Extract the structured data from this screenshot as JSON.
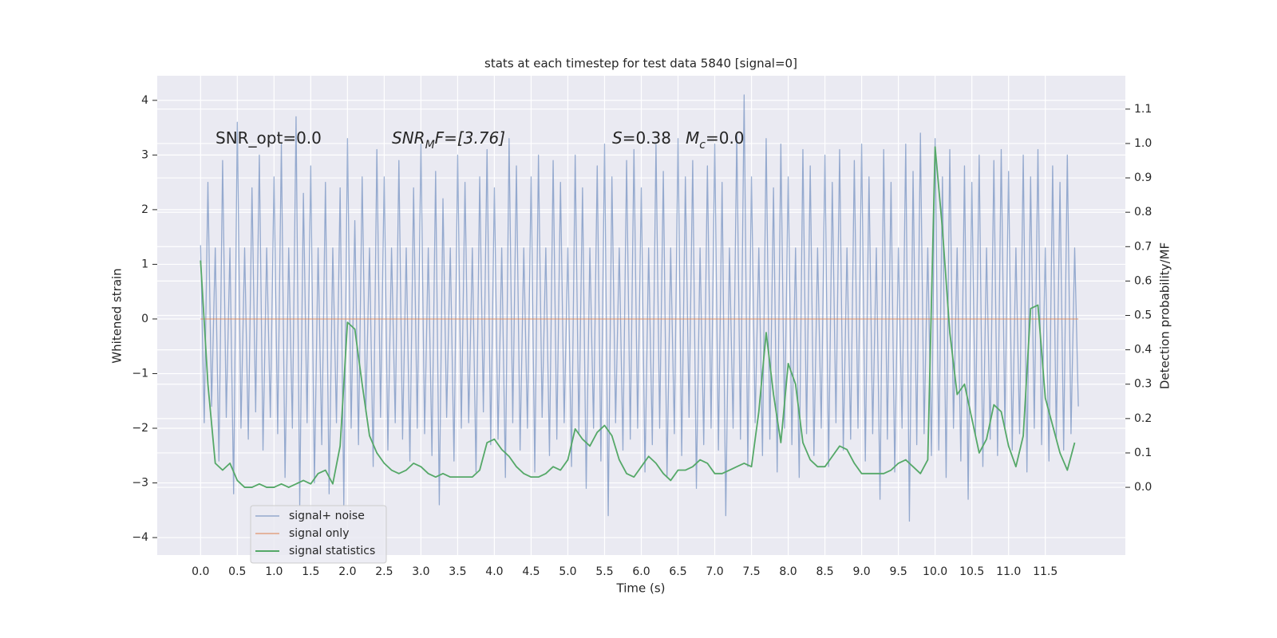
{
  "chart_data": {
    "type": "line",
    "title": "stats at each timestep for test data 5840 [signal=0]",
    "x_label": "Time (s)",
    "y_label": "Whitened strain",
    "y2_label": "Detection probability/MF",
    "annotations": [
      {
        "parts": [
          "SNR_opt=0.0"
        ]
      },
      {
        "parts": [
          "SNR",
          "M",
          "F=[3.76]"
        ]
      },
      {
        "parts": [
          "S",
          "=0.38"
        ]
      },
      {
        "parts": [
          "M",
          "c",
          "=0.0"
        ]
      }
    ],
    "xlim": [
      -0.59,
      12.59
    ],
    "ylim": [
      -4.32,
      4.45
    ],
    "y2lim": [
      -0.197,
      1.197
    ],
    "xticks": [
      {
        "value": 0,
        "label": "0.0"
      },
      0.5,
      {
        "value": 1,
        "label": "1.0"
      },
      1.5,
      {
        "value": 2,
        "label": "2.0"
      },
      2.5,
      {
        "value": 3,
        "label": "3.0"
      },
      3.5,
      {
        "value": 4,
        "label": "4.0"
      },
      4.5,
      {
        "value": 5,
        "label": "5.0"
      },
      5.5,
      {
        "value": 6,
        "label": "6.0"
      },
      6.5,
      {
        "value": 7,
        "label": "7.0"
      },
      7.5,
      {
        "value": 8,
        "label": "8.0"
      },
      8.5,
      {
        "value": 9,
        "label": "9.0"
      },
      9.5,
      {
        "value": 10,
        "label": "10.0"
      },
      10.5,
      {
        "value": 11,
        "label": "11.0"
      },
      11.5
    ],
    "yticks": [
      {
        "value": -4,
        "label": "−4"
      },
      {
        "value": -3,
        "label": "−3"
      },
      {
        "value": -2,
        "label": "−2"
      },
      {
        "value": -1,
        "label": "−1"
      },
      0,
      1,
      2,
      3,
      4
    ],
    "y2ticks": [
      {
        "value": 0,
        "label": "0.0"
      },
      0.1,
      0.2,
      0.3,
      0.4,
      0.5,
      0.6,
      0.7,
      0.8,
      0.9,
      {
        "value": 1,
        "label": "1.0"
      },
      1.1
    ],
    "grid": true,
    "legend": "lower left",
    "series": [
      {
        "name": "signal+ noise",
        "color": "#4c72b0",
        "x": [
          0,
          0.05,
          0.1,
          0.15,
          0.2,
          0.25,
          0.3,
          0.35,
          0.4,
          0.45,
          0.5,
          0.55,
          0.6,
          0.65,
          0.7,
          0.75,
          0.8,
          0.85,
          0.9,
          0.95,
          1,
          1.05,
          1.1,
          1.15,
          1.2,
          1.25,
          1.3,
          1.35,
          1.4,
          1.45,
          1.5,
          1.55,
          1.6,
          1.65,
          1.7,
          1.75,
          1.8,
          1.85,
          1.9,
          1.95,
          2,
          2.05,
          2.1,
          2.15,
          2.2,
          2.25,
          2.3,
          2.35,
          2.4,
          2.45,
          2.5,
          2.55,
          2.6,
          2.65,
          2.7,
          2.75,
          2.8,
          2.85,
          2.9,
          2.95,
          3,
          3.05,
          3.1,
          3.15,
          3.2,
          3.25,
          3.3,
          3.35,
          3.4,
          3.45,
          3.5,
          3.55,
          3.6,
          3.65,
          3.7,
          3.75,
          3.8,
          3.85,
          3.9,
          3.95,
          4,
          4.05,
          4.1,
          4.15,
          4.2,
          4.25,
          4.3,
          4.35,
          4.4,
          4.45,
          4.5,
          4.55,
          4.6,
          4.65,
          4.7,
          4.75,
          4.8,
          4.85,
          4.9,
          4.95,
          5,
          5.05,
          5.1,
          5.15,
          5.2,
          5.25,
          5.3,
          5.35,
          5.4,
          5.45,
          5.5,
          5.55,
          5.6,
          5.65,
          5.7,
          5.75,
          5.8,
          5.85,
          5.9,
          5.95,
          6,
          6.05,
          6.1,
          6.15,
          6.2,
          6.25,
          6.3,
          6.35,
          6.4,
          6.45,
          6.5,
          6.55,
          6.6,
          6.65,
          6.7,
          6.75,
          6.8,
          6.85,
          6.9,
          6.95,
          7,
          7.05,
          7.1,
          7.15,
          7.2,
          7.25,
          7.3,
          7.35,
          7.4,
          7.45,
          7.5,
          7.55,
          7.6,
          7.65,
          7.7,
          7.75,
          7.8,
          7.85,
          7.9,
          7.95,
          8,
          8.05,
          8.1,
          8.15,
          8.2,
          8.25,
          8.3,
          8.35,
          8.4,
          8.45,
          8.5,
          8.55,
          8.6,
          8.65,
          8.7,
          8.75,
          8.8,
          8.85,
          8.9,
          8.95,
          9,
          9.05,
          9.1,
          9.15,
          9.2,
          9.25,
          9.3,
          9.35,
          9.4,
          9.45,
          9.5,
          9.55,
          9.6,
          9.65,
          9.7,
          9.75,
          9.8,
          9.85,
          9.9,
          9.95,
          10,
          10.05,
          10.1,
          10.15,
          10.2,
          10.25,
          10.3,
          10.35,
          10.4,
          10.45,
          10.5,
          10.55,
          10.6,
          10.65,
          10.7,
          10.75,
          10.8,
          10.85,
          10.9,
          10.95,
          11,
          11.05,
          11.1,
          11.15,
          11.2,
          11.25,
          11.3,
          11.35,
          11.4,
          11.45,
          11.5,
          11.55,
          11.6,
          11.65,
          11.7,
          11.75,
          11.8,
          11.85,
          11.9,
          11.95
        ],
        "values": [
          1.35,
          -1.9,
          2.5,
          -1.6,
          1.3,
          -2.6,
          2.9,
          -1.8,
          1.3,
          -3.2,
          3.6,
          -2.0,
          1.3,
          -2.2,
          2.4,
          -1.7,
          3.0,
          -2.4,
          1.3,
          -1.8,
          2.6,
          -2.1,
          3.2,
          -2.9,
          1.3,
          -2.0,
          3.7,
          -3.4,
          2.3,
          -1.9,
          2.8,
          -3.0,
          1.3,
          -2.3,
          2.5,
          -3.2,
          1.3,
          -1.9,
          2.4,
          -3.4,
          3.3,
          -2.0,
          1.8,
          -2.3,
          2.6,
          -1.7,
          1.3,
          -2.7,
          3.1,
          -1.8,
          2.6,
          -2.4,
          1.3,
          -1.9,
          2.9,
          -2.2,
          1.3,
          -2.6,
          2.4,
          -2.0,
          3.2,
          -2.1,
          1.3,
          -2.5,
          2.7,
          -3.4,
          2.2,
          -1.8,
          1.3,
          -2.6,
          3.0,
          -2.0,
          2.5,
          -1.9,
          1.3,
          -2.8,
          2.6,
          -1.7,
          3.1,
          -2.3,
          2.4,
          -2.2,
          1.3,
          -2.9,
          3.3,
          -1.9,
          2.8,
          -2.4,
          1.3,
          -2.0,
          2.6,
          -2.8,
          3.0,
          -1.8,
          1.3,
          -2.5,
          2.9,
          -2.2,
          2.5,
          -1.9,
          1.3,
          -2.7,
          3.0,
          -2.1,
          2.4,
          -3.1,
          1.3,
          -2.0,
          2.8,
          -2.6,
          3.2,
          -3.6,
          2.6,
          -1.9,
          1.3,
          -2.4,
          2.9,
          -2.2,
          3.1,
          -2.0,
          2.4,
          -2.8,
          1.3,
          -2.3,
          3.2,
          -2.0,
          2.7,
          -2.9,
          1.3,
          -2.1,
          3.3,
          -2.5,
          2.6,
          -1.8,
          2.9,
          -3.1,
          1.3,
          -2.3,
          2.8,
          -2.0,
          3.2,
          -2.4,
          2.5,
          -3.6,
          1.3,
          -2.0,
          3.4,
          -2.2,
          4.1,
          -2.7,
          2.6,
          -1.9,
          1.3,
          -2.5,
          3.3,
          -2.2,
          2.4,
          -2.8,
          3.2,
          -2.0,
          2.6,
          -2.3,
          1.3,
          -2.9,
          3.1,
          -2.1,
          2.8,
          -2.5,
          1.3,
          -2.0,
          3.0,
          -2.7,
          2.5,
          -1.9,
          3.1,
          -2.4,
          1.3,
          -2.2,
          2.9,
          -2.0,
          3.2,
          -2.6,
          2.6,
          -2.1,
          1.3,
          -3.3,
          3.1,
          -2.2,
          2.5,
          -2.8,
          1.3,
          -2.0,
          3.2,
          -3.7,
          2.7,
          -2.3,
          3.4,
          -2.1,
          1.3,
          -2.5,
          3.3,
          -2.4,
          2.6,
          -2.9,
          3.1,
          -2.0,
          1.3,
          -2.6,
          2.8,
          -3.3,
          2.5,
          -2.1,
          3.0,
          -2.7,
          1.3,
          -2.2,
          2.9,
          -2.5,
          3.1,
          -2.0,
          2.7,
          -2.4,
          1.3,
          -2.1,
          3.0,
          -2.8,
          2.6,
          -2.0,
          3.1,
          -2.3,
          1.3,
          -2.6,
          2.8,
          -2.2,
          2.5,
          -2.4,
          3.0,
          -2.1,
          1.3,
          -1.6
        ]
      },
      {
        "name": "signal only",
        "color": "#dd8452",
        "x": [
          0,
          11.95
        ],
        "values": [
          0,
          0
        ]
      },
      {
        "name": "signal statistics",
        "color": "#55a868",
        "axis": "y2",
        "x": [
          0,
          0.1,
          0.2,
          0.3,
          0.4,
          0.5,
          0.6,
          0.7,
          0.8,
          0.9,
          1,
          1.1,
          1.2,
          1.3,
          1.4,
          1.5,
          1.6,
          1.7,
          1.8,
          1.9,
          2,
          2.1,
          2.2,
          2.3,
          2.4,
          2.5,
          2.6,
          2.7,
          2.8,
          2.9,
          3,
          3.1,
          3.2,
          3.3,
          3.4,
          3.5,
          3.6,
          3.7,
          3.8,
          3.9,
          4,
          4.1,
          4.2,
          4.3,
          4.4,
          4.5,
          4.6,
          4.7,
          4.8,
          4.9,
          5,
          5.1,
          5.2,
          5.3,
          5.4,
          5.5,
          5.6,
          5.7,
          5.8,
          5.9,
          6,
          6.1,
          6.2,
          6.3,
          6.4,
          6.5,
          6.6,
          6.7,
          6.8,
          6.9,
          7,
          7.1,
          7.2,
          7.3,
          7.4,
          7.5,
          7.6,
          7.7,
          7.8,
          7.9,
          8,
          8.1,
          8.2,
          8.3,
          8.4,
          8.5,
          8.6,
          8.7,
          8.8,
          8.9,
          9,
          9.1,
          9.2,
          9.3,
          9.4,
          9.5,
          9.6,
          9.7,
          9.8,
          9.9,
          10,
          10.1,
          10.2,
          10.3,
          10.4,
          10.5,
          10.6,
          10.7,
          10.8,
          10.9,
          11,
          11.1,
          11.2,
          11.3,
          11.4,
          11.5,
          11.6,
          11.7,
          11.8,
          11.9
        ],
        "values": [
          0.66,
          0.3,
          0.07,
          0.05,
          0.07,
          0.02,
          0.0,
          0.0,
          0.01,
          0.0,
          0.0,
          0.01,
          0.0,
          0.01,
          0.02,
          0.01,
          0.04,
          0.05,
          0.01,
          0.12,
          0.48,
          0.46,
          0.3,
          0.15,
          0.1,
          0.07,
          0.05,
          0.04,
          0.05,
          0.07,
          0.06,
          0.04,
          0.03,
          0.04,
          0.03,
          0.03,
          0.03,
          0.03,
          0.05,
          0.13,
          0.14,
          0.11,
          0.09,
          0.06,
          0.04,
          0.03,
          0.03,
          0.04,
          0.06,
          0.05,
          0.08,
          0.17,
          0.14,
          0.12,
          0.16,
          0.18,
          0.15,
          0.08,
          0.04,
          0.03,
          0.06,
          0.09,
          0.07,
          0.04,
          0.02,
          0.05,
          0.05,
          0.06,
          0.08,
          0.07,
          0.04,
          0.04,
          0.05,
          0.06,
          0.07,
          0.06,
          0.22,
          0.45,
          0.27,
          0.13,
          0.36,
          0.3,
          0.13,
          0.08,
          0.06,
          0.06,
          0.09,
          0.12,
          0.11,
          0.07,
          0.04,
          0.04,
          0.04,
          0.04,
          0.05,
          0.07,
          0.08,
          0.06,
          0.04,
          0.08,
          0.99,
          0.75,
          0.45,
          0.27,
          0.3,
          0.2,
          0.1,
          0.14,
          0.24,
          0.22,
          0.12,
          0.06,
          0.15,
          0.52,
          0.53,
          0.26,
          0.18,
          0.1,
          0.05,
          0.13
        ]
      }
    ]
  }
}
